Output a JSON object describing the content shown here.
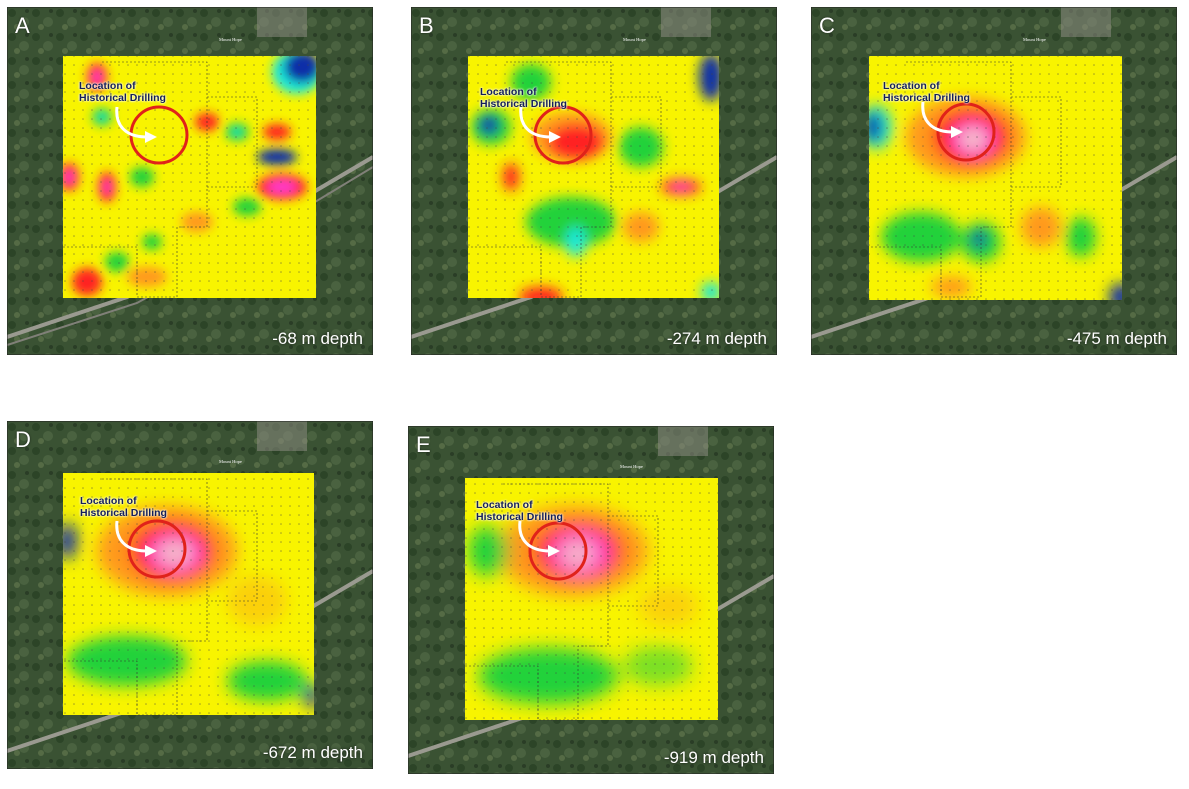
{
  "panels": [
    {
      "letter": "A",
      "depth": "-68 m depth",
      "annotation_line1": "Location of",
      "annotation_line2": "Historical Drilling"
    },
    {
      "letter": "B",
      "depth": "-274 m depth",
      "annotation_line1": "Location of",
      "annotation_line2": "Historical Drilling"
    },
    {
      "letter": "C",
      "depth": "-475 m depth",
      "annotation_line1": "Location of",
      "annotation_line2": "Historical Drilling"
    },
    {
      "letter": "D",
      "depth": "-672 m depth",
      "annotation_line1": "Location of",
      "annotation_line2": "Historical Drilling"
    },
    {
      "letter": "E",
      "depth": "-919 m depth",
      "annotation_line1": "Location of",
      "annotation_line2": "Historical Drilling"
    }
  ],
  "place_label": "Mount Hope",
  "colors": {
    "magenta": "#ff3dcc",
    "pink": "#f5b6c8",
    "red": "#ff2020",
    "orange": "#ff9a1a",
    "yellow": "#f8f400",
    "green": "#23d23a",
    "cyan": "#1ee8d8",
    "blue": "#0a2fa8",
    "annotation_circle": "#e0221a",
    "annotation_text": "#141f5a",
    "satellite": "#3a5233"
  }
}
